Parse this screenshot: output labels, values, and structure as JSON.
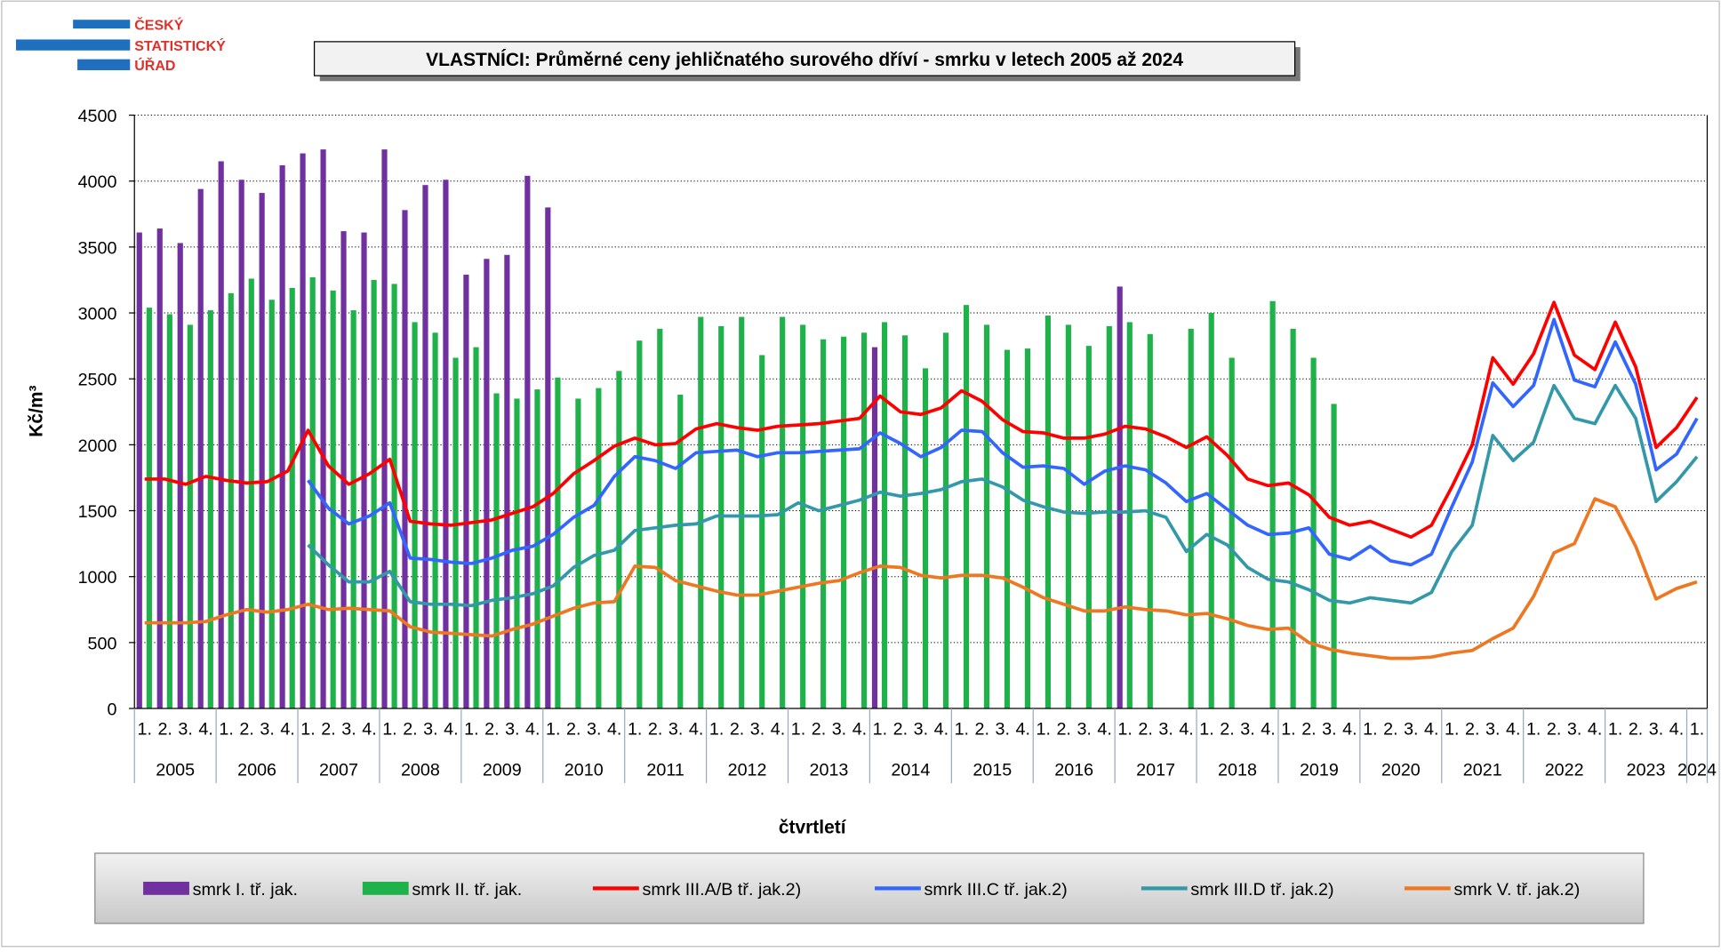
{
  "logo": [
    "ČESKÝ",
    "STATISTICKÝ",
    "ÚŘAD"
  ],
  "chart_data": {
    "type": "bar_line",
    "title": "VLASTNÍCI: Průměrné ceny jehličnatého surového dříví - smrku v letech 2005 až 2024",
    "ylabel": "Kč/m³",
    "xlabel": "čtvrtletí",
    "categories": [
      "1.",
      "2.",
      "3.",
      "4.",
      "1.",
      "2.",
      "3.",
      "4.",
      "1.",
      "2.",
      "3.",
      "4.",
      "1.",
      "2.",
      "3.",
      "4.",
      "1.",
      "2.",
      "3.",
      "4.",
      "1.",
      "2.",
      "3.",
      "4.",
      "1.",
      "2.",
      "3.",
      "4.",
      "1.",
      "2.",
      "3.",
      "4.",
      "1.",
      "2.",
      "3.",
      "4.",
      "1.",
      "2.",
      "3.",
      "4.",
      "1.",
      "2.",
      "3.",
      "4.",
      "1.",
      "2.",
      "3.",
      "4.",
      "1.",
      "2.",
      "3.",
      "4.",
      "1.",
      "2.",
      "3.",
      "4.",
      "1.",
      "2.",
      "3.",
      "4.",
      "1.",
      "2.",
      "3.",
      "4.",
      "1.",
      "2.",
      "3.",
      "4.",
      "1.",
      "2.",
      "3.",
      "4.",
      "1.",
      "2.",
      "3.",
      "4.",
      "1."
    ],
    "years": [
      "2005",
      "2006",
      "2007",
      "2008",
      "2009",
      "2010",
      "2011",
      "2012",
      "2013",
      "2014",
      "2015",
      "2016",
      "2017",
      "2018",
      "2019",
      "2020",
      "2021",
      "2022",
      "2023",
      "2024"
    ],
    "ylim": [
      0,
      4500
    ],
    "yticks": [
      0,
      500,
      1000,
      1500,
      2000,
      2500,
      3000,
      3500,
      4000,
      4500
    ],
    "grid": true,
    "series": [
      {
        "name": "smrk I. tř. jak.",
        "kind": "bar",
        "color": "#7030a0",
        "values": [
          3610,
          3640,
          3530,
          3940,
          4150,
          4010,
          3910,
          4120,
          4210,
          4240,
          3620,
          3610,
          4240,
          3780,
          3970,
          4010,
          3290,
          3410,
          3440,
          4040,
          3800,
          null,
          null,
          null,
          null,
          null,
          null,
          null,
          null,
          null,
          null,
          null,
          null,
          null,
          null,
          null,
          2740,
          null,
          null,
          null,
          null,
          null,
          null,
          null,
          null,
          null,
          null,
          null,
          3200,
          null,
          null,
          null,
          null,
          null,
          null,
          null,
          null,
          null,
          null,
          null,
          null,
          null,
          null,
          null,
          null,
          null,
          null,
          null,
          null,
          null,
          null,
          null,
          null,
          null,
          null,
          null,
          null
        ]
      },
      {
        "name": "smrk II. tř. jak.",
        "kind": "bar",
        "color": "#1fb24a",
        "values": [
          3040,
          2990,
          2910,
          3020,
          3150,
          3260,
          3100,
          3190,
          3270,
          3170,
          3020,
          3250,
          3220,
          2930,
          2850,
          2660,
          2740,
          2390,
          2350,
          2420,
          2510,
          2350,
          2430,
          2560,
          2790,
          2880,
          2380,
          2970,
          2900,
          2970,
          2680,
          2970,
          2910,
          2800,
          2820,
          2850,
          2930,
          2830,
          2580,
          2850,
          3060,
          2910,
          2720,
          2730,
          2980,
          2910,
          2750,
          2900,
          2930,
          2840,
          null,
          2880,
          3000,
          2660,
          null,
          3090,
          2880,
          2660,
          2310,
          null,
          null,
          null,
          null,
          null,
          null,
          null,
          null,
          null,
          null,
          null,
          null,
          null,
          null,
          null,
          null,
          null,
          null
        ]
      },
      {
        "name": "smrk III.A/B tř. jak.2)",
        "kind": "line",
        "color": "#ff0000",
        "values": [
          1740,
          1740,
          1700,
          1760,
          1730,
          1710,
          1720,
          1800,
          2110,
          1840,
          1700,
          1780,
          1890,
          1420,
          1400,
          1390,
          1410,
          1430,
          1480,
          1530,
          1630,
          1780,
          1880,
          1990,
          2050,
          2000,
          2010,
          2120,
          2160,
          2130,
          2110,
          2140,
          2150,
          2160,
          2180,
          2200,
          2370,
          2250,
          2230,
          2280,
          2410,
          2330,
          2190,
          2100,
          2090,
          2050,
          2050,
          2080,
          2140,
          2120,
          2060,
          1980,
          2060,
          1920,
          1740,
          1690,
          1710,
          1620,
          1450,
          1390,
          1420,
          1360,
          1300,
          1390,
          1680,
          2000,
          2660,
          2460,
          2690,
          3080,
          2680,
          2570,
          2930,
          2590,
          1980,
          2130,
          2360
        ]
      },
      {
        "name": "smrk III.C tř. jak.2)",
        "kind": "line",
        "color": "#3366ff",
        "values": [
          null,
          null,
          null,
          null,
          null,
          null,
          null,
          null,
          1730,
          1520,
          1400,
          1460,
          1560,
          1140,
          1130,
          1110,
          1100,
          1140,
          1200,
          1230,
          1320,
          1450,
          1540,
          1760,
          1910,
          1880,
          1820,
          1940,
          1950,
          1960,
          1910,
          1940,
          1940,
          1950,
          1960,
          1970,
          2090,
          2010,
          1910,
          1980,
          2110,
          2100,
          1940,
          1830,
          1840,
          1820,
          1700,
          1800,
          1840,
          1810,
          1710,
          1570,
          1630,
          1510,
          1390,
          1320,
          1330,
          1370,
          1170,
          1130,
          1230,
          1120,
          1090,
          1170,
          1530,
          1870,
          2470,
          2290,
          2450,
          2950,
          2490,
          2440,
          2780,
          2460,
          1810,
          1930,
          2200
        ]
      },
      {
        "name": "smrk III.D tř. jak.2)",
        "kind": "line",
        "color": "#3399a8",
        "values": [
          null,
          null,
          null,
          null,
          null,
          null,
          null,
          null,
          1240,
          1090,
          960,
          960,
          1040,
          810,
          790,
          790,
          780,
          820,
          840,
          870,
          930,
          1070,
          1160,
          1200,
          1350,
          1370,
          1390,
          1400,
          1460,
          1460,
          1460,
          1470,
          1560,
          1500,
          1540,
          1580,
          1640,
          1610,
          1630,
          1660,
          1720,
          1740,
          1680,
          1580,
          1530,
          1490,
          1480,
          1490,
          1490,
          1500,
          1450,
          1190,
          1320,
          1240,
          1070,
          980,
          960,
          900,
          820,
          800,
          840,
          820,
          800,
          880,
          1190,
          1390,
          2070,
          1880,
          2020,
          2450,
          2200,
          2160,
          2450,
          2200,
          1570,
          1720,
          1910
        ]
      },
      {
        "name": "smrk V. tř. jak.2)",
        "kind": "line",
        "color": "#ee7722",
        "values": [
          650,
          650,
          650,
          660,
          710,
          750,
          730,
          750,
          790,
          750,
          760,
          750,
          740,
          620,
          580,
          570,
          560,
          550,
          600,
          640,
          700,
          760,
          800,
          810,
          1080,
          1070,
          970,
          930,
          890,
          860,
          860,
          890,
          920,
          950,
          970,
          1030,
          1080,
          1070,
          1010,
          990,
          1010,
          1010,
          990,
          920,
          840,
          790,
          740,
          740,
          770,
          750,
          740,
          710,
          720,
          680,
          630,
          600,
          610,
          500,
          450,
          420,
          400,
          380,
          380,
          390,
          420,
          440,
          530,
          610,
          850,
          1180,
          1250,
          1590,
          1530,
          1230,
          830,
          910,
          960
        ]
      }
    ]
  }
}
